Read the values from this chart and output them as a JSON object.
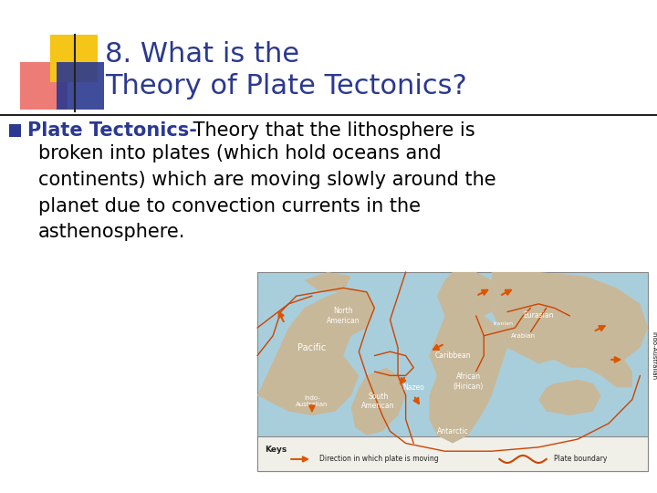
{
  "title_line1": "8. What is the",
  "title_line2": "Theory of Plate Tectonics?",
  "title_color": "#2B3990",
  "title_fontsize": 22,
  "bullet_bold_text": "Plate Tectonics-",
  "bullet_normal_suffix": " Theory that the lithosphere is",
  "bullet_rest": "broken into plates (which hold oceans and\ncontinents) which are moving slowly around the\nplanet due to convection currents in the\nasthenosphere.",
  "bullet_fontsize": 15,
  "bullet_color": "#2B3990",
  "text_color": "#000000",
  "background_color": "#ffffff",
  "yellow_color": "#F5C518",
  "red_color": "#E8504A",
  "blue_color": "#2B3990",
  "line_color": "#222222",
  "map_ocean": "#A8CEDC",
  "map_land": "#C8B89A",
  "map_border": "#CC4400",
  "arrow_color": "#CC4400",
  "arrow_fill": "#DD5500"
}
